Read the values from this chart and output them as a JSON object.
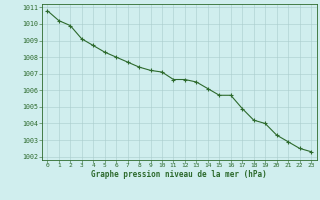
{
  "x": [
    0,
    1,
    2,
    3,
    4,
    5,
    6,
    7,
    8,
    9,
    10,
    11,
    12,
    13,
    14,
    15,
    16,
    17,
    18,
    19,
    20,
    21,
    22,
    23
  ],
  "y": [
    1010.8,
    1010.2,
    1009.9,
    1009.1,
    1008.7,
    1008.3,
    1008.0,
    1007.7,
    1007.4,
    1007.2,
    1007.1,
    1006.65,
    1006.65,
    1006.5,
    1006.1,
    1005.7,
    1005.7,
    1004.9,
    1004.2,
    1004.0,
    1003.3,
    1002.9,
    1002.5,
    1002.3
  ],
  "line_color": "#2d6a2d",
  "marker_color": "#2d6a2d",
  "bg_color": "#d0eeee",
  "grid_color": "#aacccc",
  "xlabel": "Graphe pression niveau de la mer (hPa)",
  "xlabel_color": "#2d6a2d",
  "ytick_labels": [
    1002,
    1003,
    1004,
    1005,
    1006,
    1007,
    1008,
    1009,
    1010,
    1011
  ],
  "ylim": [
    1001.8,
    1011.2
  ],
  "xlim": [
    -0.5,
    23.5
  ],
  "xtick_labels": [
    "0",
    "1",
    "2",
    "3",
    "4",
    "5",
    "6",
    "7",
    "8",
    "9",
    "10",
    "11",
    "12",
    "13",
    "14",
    "15",
    "16",
    "17",
    "18",
    "19",
    "20",
    "21",
    "22",
    "23"
  ],
  "tick_color": "#2d6a2d",
  "axis_color": "#2d6a2d",
  "marker_size": 3.0,
  "linewidth": 0.8
}
